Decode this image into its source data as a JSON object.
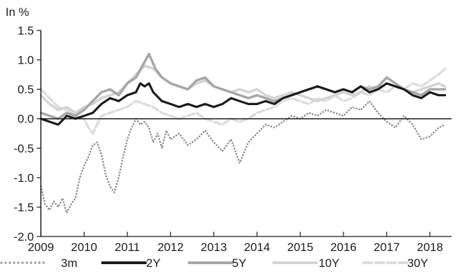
{
  "chart_data": {
    "type": "line",
    "title": "",
    "unit_label": "In %",
    "xlabel": "",
    "ylabel": "",
    "ylim": [
      -2.0,
      1.5
    ],
    "xlim": [
      2009,
      2018.5
    ],
    "yticks": [
      "1.5",
      "1.0",
      "0.5",
      "0.0",
      "-0.5",
      "-1.0",
      "-1.5",
      "-2.0"
    ],
    "ytick_values": [
      1.5,
      1.0,
      0.5,
      0.0,
      -0.5,
      -1.0,
      -1.5,
      -2.0
    ],
    "xticks": [
      "2009",
      "2010",
      "2011",
      "2012",
      "2013",
      "2014",
      "2015",
      "2016",
      "2017",
      "2018"
    ],
    "xtick_values": [
      2009,
      2010,
      2011,
      2012,
      2013,
      2014,
      2015,
      2016,
      2017,
      2018
    ],
    "grid": false,
    "legend_position": "bottom",
    "series": [
      {
        "name": "3m",
        "color": "#8c8c8c",
        "style": "dotted",
        "x": [
          2009.0,
          2009.1,
          2009.2,
          2009.3,
          2009.4,
          2009.5,
          2009.6,
          2009.7,
          2009.8,
          2009.9,
          2010.0,
          2010.1,
          2010.2,
          2010.3,
          2010.4,
          2010.5,
          2010.6,
          2010.7,
          2010.8,
          2010.9,
          2011.0,
          2011.1,
          2011.2,
          2011.3,
          2011.4,
          2011.5,
          2011.6,
          2011.7,
          2011.8,
          2011.9,
          2012.0,
          2012.2,
          2012.4,
          2012.6,
          2012.8,
          2013.0,
          2013.2,
          2013.4,
          2013.6,
          2013.8,
          2014.0,
          2014.2,
          2014.4,
          2014.6,
          2014.8,
          2015.0,
          2015.2,
          2015.4,
          2015.6,
          2015.8,
          2016.0,
          2016.2,
          2016.4,
          2016.6,
          2016.8,
          2017.0,
          2017.2,
          2017.4,
          2017.6,
          2017.8,
          2018.0,
          2018.2,
          2018.35
        ],
        "values": [
          -1.15,
          -1.45,
          -1.55,
          -1.4,
          -1.5,
          -1.35,
          -1.6,
          -1.45,
          -1.35,
          -1.0,
          -0.8,
          -0.65,
          -0.45,
          -0.4,
          -0.6,
          -0.95,
          -1.15,
          -1.25,
          -1.0,
          -0.65,
          -0.35,
          -0.15,
          0.0,
          -0.1,
          -0.05,
          -0.15,
          -0.4,
          -0.25,
          -0.5,
          -0.2,
          -0.35,
          -0.25,
          -0.45,
          -0.35,
          -0.2,
          -0.4,
          -0.55,
          -0.35,
          -0.75,
          -0.4,
          -0.25,
          -0.1,
          -0.15,
          -0.05,
          0.05,
          0.0,
          0.1,
          0.05,
          0.15,
          0.1,
          0.05,
          0.2,
          0.15,
          0.3,
          0.1,
          -0.05,
          -0.15,
          0.05,
          -0.1,
          -0.35,
          -0.3,
          -0.15,
          -0.1
        ]
      },
      {
        "name": "2Y",
        "color": "#1a1a1a",
        "style": "solid",
        "x": [
          2009.0,
          2009.2,
          2009.4,
          2009.6,
          2009.8,
          2010.0,
          2010.2,
          2010.4,
          2010.6,
          2010.8,
          2011.0,
          2011.2,
          2011.3,
          2011.4,
          2011.5,
          2011.6,
          2011.8,
          2012.0,
          2012.2,
          2012.4,
          2012.6,
          2012.8,
          2013.0,
          2013.2,
          2013.4,
          2013.6,
          2013.8,
          2014.0,
          2014.2,
          2014.4,
          2014.6,
          2014.8,
          2015.0,
          2015.2,
          2015.4,
          2015.6,
          2015.8,
          2016.0,
          2016.2,
          2016.4,
          2016.6,
          2016.8,
          2017.0,
          2017.2,
          2017.4,
          2017.6,
          2017.8,
          2018.0,
          2018.2,
          2018.35
        ],
        "values": [
          0.0,
          -0.05,
          -0.1,
          0.05,
          0.0,
          0.05,
          0.1,
          0.25,
          0.35,
          0.3,
          0.4,
          0.45,
          0.6,
          0.55,
          0.6,
          0.45,
          0.3,
          0.25,
          0.2,
          0.25,
          0.2,
          0.25,
          0.2,
          0.25,
          0.35,
          0.3,
          0.25,
          0.25,
          0.3,
          0.25,
          0.35,
          0.4,
          0.45,
          0.5,
          0.55,
          0.5,
          0.45,
          0.5,
          0.45,
          0.55,
          0.45,
          0.5,
          0.6,
          0.55,
          0.5,
          0.4,
          0.35,
          0.45,
          0.4,
          0.4
        ]
      },
      {
        "name": "5Y",
        "color": "#a6a6a6",
        "style": "solid",
        "x": [
          2009.0,
          2009.2,
          2009.4,
          2009.6,
          2009.8,
          2010.0,
          2010.2,
          2010.4,
          2010.6,
          2010.8,
          2011.0,
          2011.2,
          2011.35,
          2011.5,
          2011.65,
          2011.8,
          2012.0,
          2012.2,
          2012.4,
          2012.6,
          2012.8,
          2013.0,
          2013.2,
          2013.4,
          2013.6,
          2013.8,
          2014.0,
          2014.2,
          2014.4,
          2014.6,
          2014.8,
          2015.0,
          2015.2,
          2015.4,
          2015.6,
          2015.8,
          2016.0,
          2016.2,
          2016.4,
          2016.6,
          2016.8,
          2017.0,
          2017.2,
          2017.4,
          2017.6,
          2017.8,
          2018.0,
          2018.2,
          2018.35
        ],
        "values": [
          0.1,
          0.05,
          0.0,
          0.1,
          0.05,
          0.15,
          0.3,
          0.45,
          0.5,
          0.4,
          0.6,
          0.7,
          0.9,
          1.1,
          0.85,
          0.7,
          0.6,
          0.55,
          0.5,
          0.65,
          0.7,
          0.55,
          0.5,
          0.45,
          0.4,
          0.35,
          0.4,
          0.35,
          0.3,
          0.35,
          0.4,
          0.45,
          0.5,
          0.55,
          0.5,
          0.45,
          0.5,
          0.45,
          0.55,
          0.5,
          0.55,
          0.7,
          0.6,
          0.5,
          0.45,
          0.4,
          0.5,
          0.5,
          0.5
        ]
      },
      {
        "name": "10Y",
        "color": "#d3d3d3",
        "style": "solid",
        "x": [
          2009.0,
          2009.2,
          2009.4,
          2009.6,
          2009.8,
          2010.0,
          2010.2,
          2010.4,
          2010.6,
          2010.8,
          2011.0,
          2011.2,
          2011.4,
          2011.6,
          2011.8,
          2012.0,
          2012.2,
          2012.4,
          2012.6,
          2012.8,
          2013.0,
          2013.2,
          2013.4,
          2013.6,
          2013.8,
          2014.0,
          2014.2,
          2014.4,
          2014.6,
          2014.8,
          2015.0,
          2015.2,
          2015.4,
          2015.6,
          2015.8,
          2016.0,
          2016.2,
          2016.4,
          2016.6,
          2016.8,
          2017.0,
          2017.2,
          2017.4,
          2017.6,
          2017.8,
          2018.0,
          2018.2,
          2018.35
        ],
        "values": [
          0.4,
          0.25,
          0.15,
          0.2,
          0.1,
          0.2,
          0.25,
          0.35,
          0.4,
          0.45,
          0.6,
          0.75,
          0.9,
          0.85,
          0.7,
          0.6,
          0.55,
          0.5,
          0.6,
          0.65,
          0.55,
          0.5,
          0.45,
          0.5,
          0.45,
          0.5,
          0.4,
          0.35,
          0.4,
          0.45,
          0.4,
          0.35,
          0.3,
          0.35,
          0.4,
          0.45,
          0.4,
          0.45,
          0.55,
          0.5,
          0.6,
          0.55,
          0.5,
          0.45,
          0.5,
          0.55,
          0.6,
          0.55
        ]
      },
      {
        "name": "30Y",
        "color": "#dcdcdc",
        "style": "dashed",
        "x": [
          2009.0,
          2009.2,
          2009.4,
          2009.6,
          2009.8,
          2010.0,
          2010.1,
          2010.2,
          2010.3,
          2010.4,
          2010.6,
          2010.8,
          2011.0,
          2011.2,
          2011.4,
          2011.6,
          2011.8,
          2012.0,
          2012.2,
          2012.4,
          2012.6,
          2012.8,
          2013.0,
          2013.2,
          2013.4,
          2013.6,
          2013.8,
          2014.0,
          2014.2,
          2014.4,
          2014.6,
          2014.8,
          2015.0,
          2015.2,
          2015.4,
          2015.6,
          2015.8,
          2016.0,
          2016.2,
          2016.4,
          2016.6,
          2016.8,
          2017.0,
          2017.2,
          2017.4,
          2017.6,
          2017.8,
          2018.0,
          2018.2,
          2018.35
        ],
        "values": [
          0.5,
          0.35,
          0.2,
          0.15,
          0.05,
          0.0,
          -0.15,
          -0.25,
          -0.1,
          0.05,
          0.1,
          0.15,
          0.2,
          0.3,
          0.25,
          0.2,
          0.1,
          0.05,
          0.0,
          0.05,
          0.1,
          0.0,
          -0.05,
          -0.1,
          0.0,
          -0.05,
          0.0,
          0.1,
          0.15,
          0.2,
          0.3,
          0.35,
          0.3,
          0.25,
          0.35,
          0.3,
          0.4,
          0.3,
          0.35,
          0.45,
          0.4,
          0.5,
          0.45,
          0.55,
          0.5,
          0.6,
          0.55,
          0.65,
          0.75,
          0.85
        ]
      }
    ]
  }
}
